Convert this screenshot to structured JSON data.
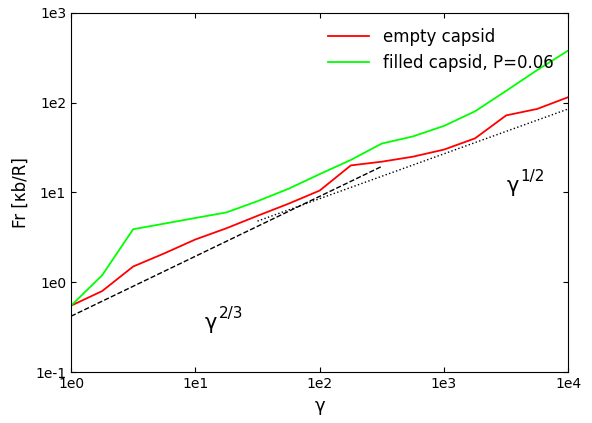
{
  "chart_data": {
    "type": "line",
    "x_label": "γ",
    "y_label": "Fr [κb/R]",
    "log": true,
    "legend": "upper right",
    "xlim": [
      1,
      10000
    ],
    "ylim": [
      0.1,
      1000
    ],
    "xticks": [
      {
        "value": 1,
        "label": "1e0"
      },
      {
        "value": 10,
        "label": "1e1"
      },
      {
        "value": 100,
        "label": "1e2"
      },
      {
        "value": 1000,
        "label": "1e3"
      },
      {
        "value": 10000,
        "label": "1e4"
      }
    ],
    "yticks": [
      {
        "value": 0.1,
        "label": "1e-1"
      },
      {
        "value": 1,
        "label": "1e0"
      },
      {
        "value": 10,
        "label": "1e1"
      },
      {
        "value": 100,
        "label": "1e2"
      },
      {
        "value": 1000,
        "label": "1e3"
      }
    ],
    "x": [
      1,
      1.78,
      3.16,
      5.62,
      10,
      17.8,
      31.6,
      56.2,
      100,
      178,
      316,
      562,
      1000,
      1778,
      3162,
      5623,
      10000
    ],
    "series": [
      {
        "name": "empty capsid",
        "color": "#ff0000",
        "line_style": "solid",
        "values": [
          0.55,
          0.8,
          1.5,
          2.1,
          3.0,
          4.0,
          5.5,
          7.5,
          10.5,
          20,
          22,
          25,
          30,
          40,
          72,
          85,
          115
        ]
      },
      {
        "name": "filled capsid, P=0.06",
        "color": "#00ff00",
        "line_style": "solid",
        "values": [
          0.55,
          1.2,
          3.9,
          4.5,
          5.2,
          6.0,
          8.0,
          11,
          16,
          23,
          35,
          42,
          55,
          80,
          135,
          230,
          380
        ]
      }
    ],
    "reference_lines": [
      {
        "color": "#000000",
        "line_style": "dashed",
        "x": [
          1,
          316
        ],
        "values": [
          0.42,
          19.5
        ]
      },
      {
        "color": "#000000",
        "line_style": "dotted",
        "x": [
          31.6,
          10000
        ],
        "values": [
          4.8,
          85
        ]
      }
    ],
    "annotations": [
      {
        "text": "γ",
        "superscript": "2/3",
        "x": 15,
        "y": 0.3
      },
      {
        "text": "γ",
        "superscript": "1/2",
        "x": 4000,
        "y": 10
      }
    ]
  }
}
